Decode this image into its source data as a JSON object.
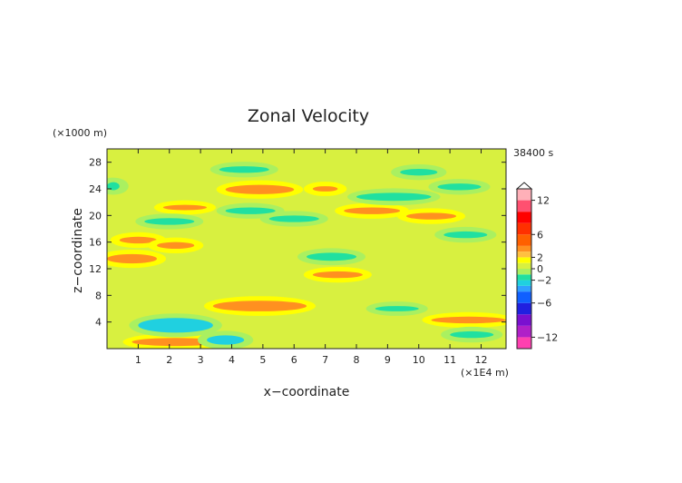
{
  "chart_data": {
    "type": "heatmap",
    "title": "Zonal Velocity",
    "xlabel": "x−coordinate",
    "ylabel": "z−coordinate",
    "x_unit": "(×1E4 m)",
    "y_unit": "(×1000 m)",
    "time_label": "38400 s",
    "xlim": [
      0,
      12.8
    ],
    "ylim": [
      0,
      30
    ],
    "x_ticks": [
      1,
      2,
      3,
      4,
      5,
      6,
      7,
      8,
      9,
      10,
      11,
      12
    ],
    "y_ticks": [
      4,
      8,
      12,
      16,
      20,
      24,
      28
    ],
    "colorbar": {
      "range": [
        -14,
        14
      ],
      "tick_labels": [
        "12",
        "6",
        "2",
        "0",
        "−2",
        "−6",
        "−12"
      ],
      "tick_values": [
        12,
        6,
        2,
        0,
        -2,
        -6,
        -12
      ],
      "levels": [
        {
          "from": -14,
          "to": -12,
          "color": "#ff40b0"
        },
        {
          "from": -12,
          "to": -10,
          "color": "#b020c8"
        },
        {
          "from": -10,
          "to": -8,
          "color": "#7a10d0"
        },
        {
          "from": -8,
          "to": -6,
          "color": "#2020e0"
        },
        {
          "from": -6,
          "to": -4,
          "color": "#1060ff"
        },
        {
          "from": -4,
          "to": -3,
          "color": "#30a0ff"
        },
        {
          "from": -3,
          "to": -2,
          "color": "#20d0e0"
        },
        {
          "from": -2,
          "to": -1,
          "color": "#20e0a0"
        },
        {
          "from": -1,
          "to": 0,
          "color": "#aaf060"
        },
        {
          "from": 0,
          "to": 1,
          "color": "#d8f040"
        },
        {
          "from": 1,
          "to": 2,
          "color": "#ffff00"
        },
        {
          "from": 2,
          "to": 3,
          "color": "#ffc040"
        },
        {
          "from": 3,
          "to": 4,
          "color": "#ff9020"
        },
        {
          "from": 4,
          "to": 6,
          "color": "#ff6000"
        },
        {
          "from": 6,
          "to": 8,
          "color": "#ff3000"
        },
        {
          "from": 8,
          "to": 10,
          "color": "#ff0000"
        },
        {
          "from": 10,
          "to": 12,
          "color": "#ff5070"
        },
        {
          "from": 12,
          "to": 14,
          "color": "#ffb0b8"
        }
      ]
    },
    "structures": [
      {
        "sign": "positive",
        "x": [
          0.0,
          1.6
        ],
        "z": [
          12.8,
          14.2
        ],
        "level": 3
      },
      {
        "sign": "positive",
        "x": [
          0.4,
          1.6
        ],
        "z": [
          15.8,
          16.8
        ],
        "level": 3
      },
      {
        "sign": "positive",
        "x": [
          3.8,
          6.0
        ],
        "z": [
          23.2,
          24.6
        ],
        "level": 3
      },
      {
        "sign": "positive",
        "x": [
          1.8,
          3.2
        ],
        "z": [
          20.8,
          21.6
        ],
        "level": 3
      },
      {
        "sign": "positive",
        "x": [
          7.6,
          9.4
        ],
        "z": [
          20.2,
          21.2
        ],
        "level": 3
      },
      {
        "sign": "positive",
        "x": [
          9.6,
          11.2
        ],
        "z": [
          19.4,
          20.4
        ],
        "level": 3
      },
      {
        "sign": "positive",
        "x": [
          3.4,
          6.4
        ],
        "z": [
          5.6,
          7.2
        ],
        "level": 3
      },
      {
        "sign": "positive",
        "x": [
          6.6,
          8.2
        ],
        "z": [
          10.6,
          11.6
        ],
        "level": 3
      },
      {
        "sign": "positive",
        "x": [
          0.8,
          3.6
        ],
        "z": [
          0.4,
          1.6
        ],
        "level": 3
      },
      {
        "sign": "positive",
        "x": [
          10.4,
          12.8
        ],
        "z": [
          3.8,
          4.8
        ],
        "level": 3
      },
      {
        "sign": "positive",
        "x": [
          1.6,
          2.8
        ],
        "z": [
          15.0,
          16.0
        ],
        "level": 3
      },
      {
        "sign": "positive",
        "x": [
          6.6,
          7.4
        ],
        "z": [
          23.6,
          24.4
        ],
        "level": 3
      },
      {
        "sign": "negative",
        "x": [
          3.6,
          5.2
        ],
        "z": [
          26.4,
          27.4
        ],
        "level": -2
      },
      {
        "sign": "negative",
        "x": [
          3.8,
          5.4
        ],
        "z": [
          20.2,
          21.2
        ],
        "level": -2
      },
      {
        "sign": "negative",
        "x": [
          5.2,
          6.8
        ],
        "z": [
          19.0,
          20.0
        ],
        "level": -2
      },
      {
        "sign": "negative",
        "x": [
          8.0,
          10.4
        ],
        "z": [
          22.2,
          23.4
        ],
        "level": -2
      },
      {
        "sign": "negative",
        "x": [
          10.6,
          12.0
        ],
        "z": [
          23.8,
          24.8
        ],
        "level": -2
      },
      {
        "sign": "negative",
        "x": [
          9.4,
          10.6
        ],
        "z": [
          26.0,
          27.0
        ],
        "level": -2
      },
      {
        "sign": "negative",
        "x": [
          1.2,
          2.8
        ],
        "z": [
          18.6,
          19.6
        ],
        "level": -2
      },
      {
        "sign": "negative",
        "x": [
          6.4,
          8.0
        ],
        "z": [
          13.2,
          14.4
        ],
        "level": -2
      },
      {
        "sign": "negative",
        "x": [
          10.8,
          12.2
        ],
        "z": [
          16.6,
          17.6
        ],
        "level": -2
      },
      {
        "sign": "negative",
        "x": [
          1.0,
          3.4
        ],
        "z": [
          2.4,
          4.6
        ],
        "level": -3
      },
      {
        "sign": "negative",
        "x": [
          3.2,
          4.4
        ],
        "z": [
          0.6,
          2.0
        ],
        "level": -3
      },
      {
        "sign": "negative",
        "x": [
          8.6,
          10.0
        ],
        "z": [
          5.6,
          6.4
        ],
        "level": -2
      },
      {
        "sign": "negative",
        "x": [
          11.0,
          12.4
        ],
        "z": [
          1.6,
          2.6
        ],
        "level": -2
      },
      {
        "sign": "negative",
        "x": [
          0.0,
          0.4
        ],
        "z": [
          23.8,
          25.0
        ],
        "level": -2
      }
    ]
  }
}
